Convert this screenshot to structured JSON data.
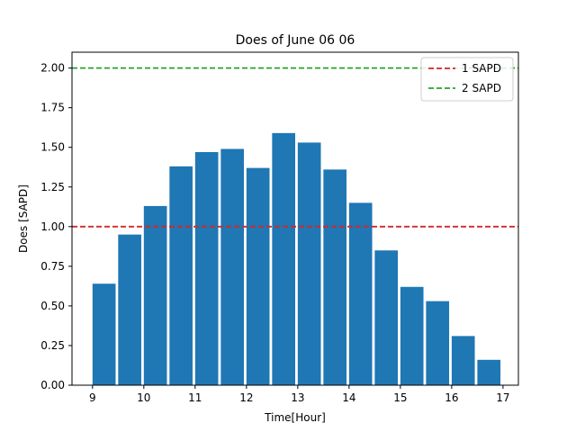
{
  "chart_data": {
    "type": "bar",
    "title": "Does of June 06 06",
    "xlabel": "Time[Hour]",
    "ylabel": "Does [SAPD]",
    "x": [
      9.0,
      9.5,
      10.0,
      10.5,
      11.0,
      11.5,
      12.0,
      12.5,
      13.0,
      13.5,
      14.0,
      14.5,
      15.0,
      15.5,
      16.0,
      16.5
    ],
    "values": [
      0.64,
      0.95,
      1.13,
      1.38,
      1.47,
      1.49,
      1.37,
      1.59,
      1.53,
      1.36,
      1.15,
      0.85,
      0.62,
      0.53,
      0.31,
      0.16
    ],
    "bar_width_hours": 0.45,
    "bar_color": "#1f77b4",
    "xlim": [
      8.6,
      17.3
    ],
    "ylim": [
      0.0,
      2.1
    ],
    "xticks": [
      9,
      10,
      11,
      12,
      13,
      14,
      15,
      16,
      17
    ],
    "yticks": [
      0.0,
      0.25,
      0.5,
      0.75,
      1.0,
      1.25,
      1.5,
      1.75,
      2.0
    ],
    "ytick_labels": [
      "0.00",
      "0.25",
      "0.50",
      "0.75",
      "1.00",
      "1.25",
      "1.50",
      "1.75",
      "2.00"
    ],
    "reference_lines": [
      {
        "name": "1 SAPD",
        "y": 1.0,
        "color": "#d62728",
        "style": "dashed"
      },
      {
        "name": "2 SAPD",
        "y": 2.0,
        "color": "#2ca02c",
        "style": "dashed"
      }
    ],
    "legend_position": "top-right",
    "grid": false
  }
}
